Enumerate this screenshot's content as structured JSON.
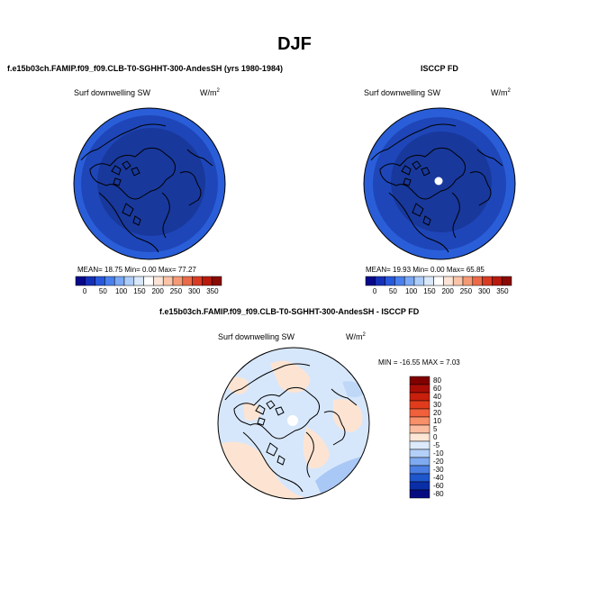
{
  "title": "DJF",
  "left_panel": {
    "header": "f.e15b03ch.FAMIP.f09_f09.CLB-T0-SGHHT-300-AndesSH (yrs 1980-1984)",
    "variable": "Surf downwelling SW",
    "units": "W/m",
    "units_sup": "2",
    "stats": "MEAN=   18.75   Min=     0.00   Max=   77.27"
  },
  "right_panel": {
    "header": "ISCCP FD",
    "variable": "Surf downwelling SW",
    "units": "W/m",
    "units_sup": "2",
    "stats": "MEAN=   19.93   Min=     0.00   Max=   65.85"
  },
  "top_colorbar": {
    "labels": [
      "0",
      "50",
      "100",
      "150",
      "200",
      "250",
      "300",
      "350"
    ],
    "colors": [
      "#08088a",
      "#1530b8",
      "#2858dc",
      "#4a80ee",
      "#7aa8f4",
      "#aecdf8",
      "#dae8fb",
      "#ffffff",
      "#fde4d6",
      "#fbc4a8",
      "#f59a76",
      "#eb6a48",
      "#d83c24",
      "#b81a0e",
      "#8a0a04"
    ]
  },
  "diff_panel": {
    "header": "f.e15b03ch.FAMIP.f09_f09.CLB-T0-SGHHT-300-AndesSH - ISCCP FD",
    "variable": "Surf downwelling SW",
    "units": "W/m",
    "units_sup": "2",
    "stats": "MIN = -16.55  MAX =   7.03"
  },
  "diff_colorbar": {
    "labels": [
      "80",
      "60",
      "40",
      "30",
      "20",
      "10",
      "5",
      "0",
      "-5",
      "-10",
      "-20",
      "-30",
      "-40",
      "-60",
      "-80"
    ],
    "colors": [
      "#800000",
      "#a80e06",
      "#c8200c",
      "#e03c1c",
      "#f0603a",
      "#f8906a",
      "#fcbca0",
      "#fde6d6",
      "#ddeafc",
      "#b4d0f8",
      "#80aaf0",
      "#4a7ee2",
      "#1e56cc",
      "#0a2ea8",
      "#060c80"
    ]
  },
  "colors": {
    "low_sw": "#1b3fa8",
    "mid_sw": "#2b5fd9",
    "rim_sw": "#3a6fe0",
    "diff_pos": "#fde4d2",
    "diff_neg": "#d7e7fb"
  }
}
